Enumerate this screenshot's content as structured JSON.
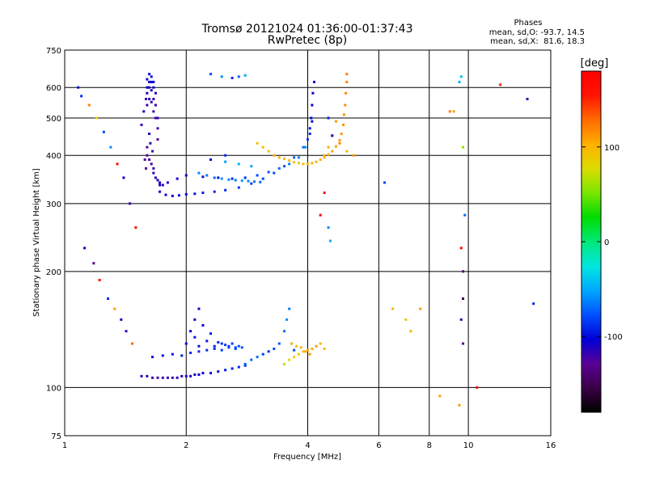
{
  "chart_data": {
    "type": "scatter",
    "title_line1": "Tromsø 20121024 01:36:00-01:37:43",
    "title_line2": "RwPretec (8p)",
    "stats": {
      "header": "Phases",
      "line1": "mean, sd,O: -93.7, 14.5",
      "line2": "mean, sd,X:  81.6, 18.3"
    },
    "xlabel": "Frequency [MHz]",
    "ylabel": "Stationary phase Virtual Height [km]",
    "x_scale": "log",
    "y_scale": "log",
    "xlim": [
      1,
      16
    ],
    "ylim": [
      75,
      750
    ],
    "x_ticks": [
      1,
      2,
      4,
      6,
      8,
      10,
      16
    ],
    "x_tick_labels": [
      "1",
      "2",
      "4",
      "6",
      "8",
      "10",
      "16"
    ],
    "y_ticks": [
      75,
      100,
      200,
      300,
      400,
      500,
      600,
      750
    ],
    "y_tick_labels": [
      "75",
      "100",
      "200",
      "300",
      "400",
      "500",
      "600",
      "750"
    ],
    "x_gridlines": [
      2,
      4,
      6,
      8,
      10
    ],
    "y_gridlines": [
      100,
      200,
      300,
      400,
      500,
      600
    ],
    "grid": true,
    "colorbar": {
      "label": "[deg]",
      "range": [
        -180,
        180
      ],
      "ticks": [
        100,
        0,
        -100
      ],
      "tick_labels": [
        "100",
        "0",
        "-100"
      ],
      "colors": [
        "#000000",
        "#3a0046",
        "#5a0096",
        "#0000d8",
        "#0050ff",
        "#00a8ff",
        "#00e8e0",
        "#00e878",
        "#00dc00",
        "#78e600",
        "#dcdc00",
        "#ffb000",
        "#ff6a00",
        "#ff1400",
        "#ff0000"
      ]
    },
    "series": [
      {
        "x": [
          1.55,
          1.57,
          1.59,
          1.6,
          1.6,
          1.6,
          1.6,
          1.62,
          1.62,
          1.62,
          1.62,
          1.64,
          1.64,
          1.64,
          1.64,
          1.66,
          1.66,
          1.66,
          1.66,
          1.68,
          1.68,
          1.68,
          1.7,
          1.7,
          1.7,
          1.6,
          1.6,
          1.62,
          1.64,
          1.66,
          1.66,
          1.68,
          1.7,
          1.72,
          1.72,
          1.62,
          1.63,
          1.65,
          1.58,
          1.59
        ],
        "y": [
          480,
          520,
          560,
          600,
          630,
          580,
          540,
          620,
          650,
          600,
          560,
          640,
          620,
          590,
          550,
          620,
          600,
          560,
          520,
          580,
          540,
          500,
          500,
          470,
          440,
          420,
          400,
          390,
          380,
          370,
          360,
          350,
          345,
          340,
          335,
          455,
          430,
          410,
          390,
          370
        ],
        "phase": [
          -120,
          -110,
          -115,
          -105,
          -100,
          -112,
          -118,
          -110,
          -98,
          -108,
          -115,
          -100,
          -104,
          -110,
          -118,
          -102,
          -108,
          -112,
          -120,
          -115,
          -118,
          -122,
          -120,
          -124,
          -126,
          -130,
          -128,
          -125,
          -122,
          -120,
          -118,
          -116,
          -114,
          -110,
          -108,
          -112,
          -116,
          -120,
          -125,
          -130
        ]
      },
      {
        "x": [
          1.72,
          1.78,
          1.85,
          1.92,
          2.0,
          2.1,
          2.2,
          2.35,
          2.5,
          2.7,
          2.9,
          3.1,
          3.3,
          3.5,
          3.7,
          3.9,
          4.0,
          4.05,
          4.08,
          4.1,
          4.12,
          4.15,
          1.75,
          1.8,
          1.9,
          2.0,
          2.2,
          2.4,
          2.6,
          2.8,
          3.0,
          3.2,
          3.4,
          3.6,
          3.8,
          3.95,
          4.05,
          4.1
        ],
        "y": [
          322,
          316,
          314,
          315,
          317,
          318,
          320,
          322,
          325,
          330,
          338,
          348,
          360,
          375,
          395,
          420,
          440,
          470,
          500,
          540,
          580,
          620,
          335,
          340,
          348,
          355,
          352,
          350,
          348,
          350,
          355,
          362,
          370,
          380,
          395,
          420,
          455,
          490
        ],
        "phase": [
          -110,
          -108,
          -105,
          -102,
          -100,
          -98,
          -95,
          -92,
          -90,
          -88,
          -85,
          -82,
          -80,
          -75,
          -70,
          -68,
          -85,
          -95,
          -100,
          -104,
          -106,
          -108,
          -115,
          -112,
          -110,
          -108,
          -100,
          -96,
          -90,
          -86,
          -80,
          -76,
          -70,
          -64,
          -60,
          -58,
          -90,
          -100
        ]
      },
      {
        "x": [
          2.15,
          2.25,
          2.35,
          2.45,
          2.55,
          2.65,
          2.75,
          2.85,
          2.95,
          3.05,
          2.3,
          2.5,
          2.7,
          2.9
        ],
        "y": [
          360,
          355,
          350,
          348,
          346,
          345,
          344,
          343,
          342,
          341,
          390,
          385,
          380,
          375
        ],
        "phase": [
          -60,
          -65,
          -70,
          -58,
          -62,
          -66,
          -55,
          -60,
          -64,
          -68,
          -50,
          -55,
          -48,
          -52
        ]
      },
      {
        "x": [
          3.0,
          3.1,
          3.2,
          3.3,
          3.4,
          3.5,
          3.6,
          3.7,
          3.8,
          3.9,
          4.0,
          4.1,
          4.2,
          4.3,
          4.4,
          4.5,
          4.6,
          4.7,
          4.8,
          4.85,
          4.9,
          4.92,
          4.95,
          4.97,
          5.0,
          5.0,
          4.4,
          4.5,
          4.6,
          4.7
        ],
        "y": [
          430,
          420,
          410,
          400,
          395,
          392,
          388,
          384,
          382,
          380,
          380,
          382,
          385,
          390,
          395,
          402,
          410,
          422,
          438,
          455,
          480,
          510,
          540,
          580,
          620,
          650,
          400,
          420,
          450,
          490
        ],
        "phase": [
          95,
          96,
          98,
          100,
          102,
          100,
          98,
          96,
          95,
          94,
          96,
          98,
          100,
          102,
          104,
          105,
          106,
          108,
          110,
          112,
          114,
          115,
          116,
          118,
          120,
          122,
          100,
          104,
          108,
          112
        ]
      },
      {
        "x": [
          1.55,
          1.6,
          1.65,
          1.7,
          1.75,
          1.8,
          1.85,
          1.9,
          1.95,
          2.0,
          2.05,
          2.1,
          2.15,
          2.2,
          2.3,
          2.4,
          2.5,
          2.6,
          2.7,
          2.8,
          1.65,
          1.75,
          1.85,
          1.95,
          2.05,
          2.15,
          2.25,
          2.35,
          2.45,
          2.55,
          2.65
        ],
        "y": [
          107,
          107,
          106,
          106,
          106,
          106,
          106,
          106,
          107,
          107,
          107,
          108,
          108,
          109,
          109,
          110,
          111,
          112,
          113,
          114,
          120,
          121,
          122,
          121,
          123,
          124,
          125,
          126,
          125,
          127,
          126
        ],
        "phase": [
          -112,
          -115,
          -118,
          -120,
          -122,
          -118,
          -116,
          -114,
          -112,
          -110,
          -108,
          -106,
          -104,
          -102,
          -100,
          -98,
          -96,
          -94,
          -92,
          -90,
          -100,
          -98,
          -96,
          -94,
          -92,
          -90,
          -88,
          -86,
          -84,
          -82,
          -80
        ]
      },
      {
        "x": [
          2.0,
          2.05,
          2.1,
          2.1,
          2.15,
          2.15,
          2.2,
          2.25,
          2.3,
          2.35,
          2.4,
          2.45,
          2.5,
          2.55,
          2.6,
          2.65,
          2.7,
          2.75,
          2.8,
          2.9,
          3.0,
          3.1,
          3.2,
          3.3,
          3.4,
          3.5,
          3.55,
          3.6,
          3.65,
          3.7
        ],
        "y": [
          130,
          140,
          135,
          150,
          128,
          160,
          145,
          132,
          138,
          128,
          131,
          130,
          129,
          128,
          130,
          127,
          128,
          127,
          115,
          118,
          120,
          122,
          124,
          126,
          130,
          140,
          150,
          160,
          130,
          125
        ],
        "phase": [
          -100,
          -105,
          -95,
          -110,
          -98,
          -108,
          -102,
          -96,
          -94,
          -92,
          -90,
          -88,
          -86,
          -84,
          -82,
          -80,
          -78,
          -76,
          -74,
          -72,
          -70,
          -85,
          -90,
          -80,
          -75,
          -70,
          -60,
          -65,
          -72,
          -78
        ]
      },
      {
        "x": [
          3.6,
          3.7,
          3.8,
          3.9,
          4.0,
          4.1,
          4.2,
          4.3,
          4.4,
          3.5,
          3.65,
          3.75,
          3.85,
          3.95,
          4.05
        ],
        "y": [
          118,
          120,
          122,
          124,
          125,
          126,
          128,
          130,
          126,
          115,
          130,
          128,
          127,
          124,
          122
        ],
        "phase": [
          80,
          85,
          90,
          95,
          100,
          105,
          110,
          100,
          96,
          70,
          92,
          98,
          102,
          106,
          110
        ]
      },
      {
        "x": [
          1.08,
          1.1,
          1.15,
          1.2,
          1.25,
          1.3,
          1.35,
          1.4,
          1.45,
          1.5,
          1.12,
          1.18,
          1.22,
          1.28,
          1.33,
          1.38,
          1.42,
          1.47,
          2.3,
          2.45,
          2.6,
          2.7,
          2.8,
          2.3,
          2.5
        ],
        "y": [
          600,
          570,
          540,
          500,
          460,
          420,
          380,
          350,
          300,
          260,
          230,
          210,
          190,
          170,
          160,
          150,
          140,
          130,
          650,
          640,
          635,
          640,
          645,
          390,
          400
        ],
        "phase": [
          -100,
          -90,
          120,
          80,
          -80,
          -60,
          170,
          -110,
          -120,
          160,
          -100,
          -130,
          170,
          -90,
          110,
          -110,
          -120,
          130,
          -80,
          -60,
          -90,
          -70,
          -50,
          -100,
          -90
        ]
      },
      {
        "x": [
          4.5,
          4.6,
          4.8,
          5.0,
          5.2,
          4.4,
          4.3,
          4.5,
          4.55,
          6.2,
          6.5,
          7.0,
          7.2,
          7.6,
          9.0,
          9.2,
          9.5,
          9.6,
          9.7,
          9.8,
          9.6,
          9.7,
          9.7,
          9.6,
          9.7,
          9.5,
          12.0,
          14.0,
          14.5,
          10.5,
          8.5
        ],
        "y": [
          500,
          450,
          430,
          410,
          400,
          320,
          280,
          260,
          240,
          340,
          160,
          150,
          140,
          160,
          520,
          520,
          620,
          640,
          420,
          280,
          230,
          200,
          170,
          150,
          130,
          90,
          610,
          560,
          165,
          100,
          95
        ],
        "phase": [
          -90,
          -100,
          120,
          100,
          110,
          170,
          175,
          -60,
          -50,
          -80,
          100,
          90,
          100,
          110,
          120,
          110,
          -50,
          -40,
          60,
          -70,
          170,
          -140,
          -150,
          -120,
          -130,
          110,
          150,
          -120,
          -90,
          180,
          110
        ]
      }
    ]
  }
}
